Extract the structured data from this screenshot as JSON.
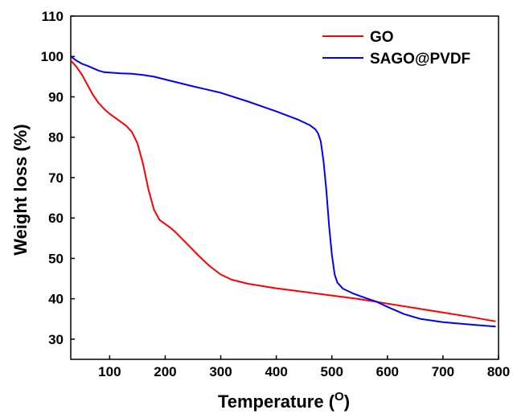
{
  "chart_data": {
    "type": "line",
    "xlabel": "Temperature (",
    "xlabel_superscript": "O",
    "xlabel_close": ")",
    "ylabel": "Weight loss (%)",
    "xlim": [
      30,
      800
    ],
    "ylim": [
      25,
      110
    ],
    "x_ticks": [
      100,
      200,
      300,
      400,
      500,
      600,
      700,
      800
    ],
    "y_ticks": [
      30,
      40,
      50,
      60,
      70,
      80,
      90,
      100,
      110
    ],
    "grid": false,
    "legend_position": "top-right",
    "series": [
      {
        "name": "GO",
        "color": "#ff0000",
        "points": [
          [
            30,
            99
          ],
          [
            40,
            97.5
          ],
          [
            50,
            95.5
          ],
          [
            60,
            93
          ],
          [
            70,
            90.5
          ],
          [
            80,
            88.5
          ],
          [
            90,
            87
          ],
          [
            100,
            85.8
          ],
          [
            110,
            84.8
          ],
          [
            120,
            83.8
          ],
          [
            130,
            82.8
          ],
          [
            140,
            81.3
          ],
          [
            150,
            78.5
          ],
          [
            160,
            73.5
          ],
          [
            170,
            67
          ],
          [
            180,
            62
          ],
          [
            190,
            59.5
          ],
          [
            200,
            58.5
          ],
          [
            210,
            57.5
          ],
          [
            220,
            56.3
          ],
          [
            240,
            53.5
          ],
          [
            260,
            50.7
          ],
          [
            280,
            48.1
          ],
          [
            300,
            46
          ],
          [
            320,
            44.7
          ],
          [
            350,
            43.7
          ],
          [
            400,
            42.6
          ],
          [
            450,
            41.7
          ],
          [
            500,
            40.8
          ],
          [
            550,
            39.9
          ],
          [
            600,
            38.8
          ],
          [
            650,
            37.7
          ],
          [
            700,
            36.6
          ],
          [
            750,
            35.5
          ],
          [
            795,
            34.4
          ]
        ]
      },
      {
        "name": "SAGO@PVDF",
        "color": "#0000ff",
        "points": [
          [
            30,
            100
          ],
          [
            40,
            99
          ],
          [
            50,
            98.2
          ],
          [
            60,
            97.7
          ],
          [
            70,
            97.1
          ],
          [
            80,
            96.5
          ],
          [
            90,
            96.1
          ],
          [
            100,
            96
          ],
          [
            120,
            95.8
          ],
          [
            140,
            95.7
          ],
          [
            160,
            95.4
          ],
          [
            180,
            95
          ],
          [
            200,
            94.3
          ],
          [
            250,
            92.6
          ],
          [
            300,
            91
          ],
          [
            350,
            88.8
          ],
          [
            400,
            86.4
          ],
          [
            440,
            84.3
          ],
          [
            460,
            83
          ],
          [
            470,
            82
          ],
          [
            475,
            81
          ],
          [
            480,
            79
          ],
          [
            485,
            74
          ],
          [
            490,
            67
          ],
          [
            495,
            58
          ],
          [
            500,
            51
          ],
          [
            505,
            46
          ],
          [
            510,
            44
          ],
          [
            520,
            42.5
          ],
          [
            540,
            41.2
          ],
          [
            560,
            40.2
          ],
          [
            580,
            39.3
          ],
          [
            600,
            38
          ],
          [
            630,
            36.2
          ],
          [
            660,
            35
          ],
          [
            700,
            34.2
          ],
          [
            750,
            33.6
          ],
          [
            795,
            33.1
          ]
        ]
      }
    ]
  }
}
